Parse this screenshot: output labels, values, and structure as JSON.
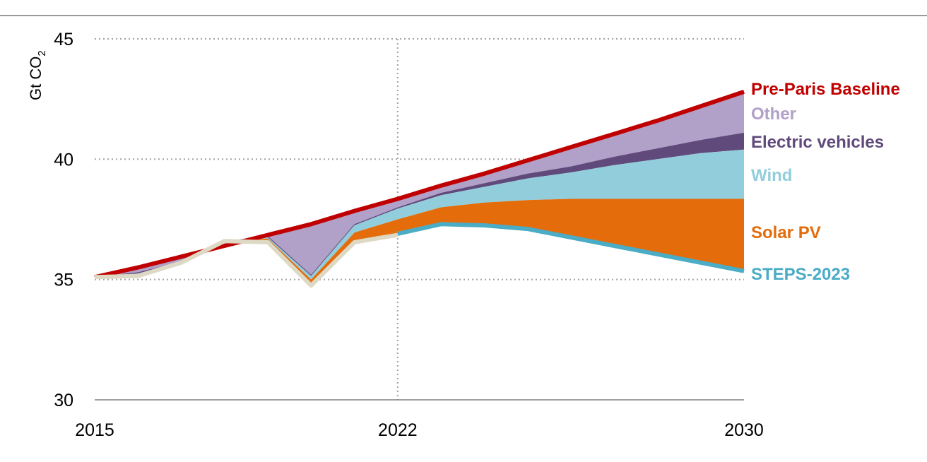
{
  "chart_data": {
    "type": "area",
    "title": "",
    "xlabel": "",
    "ylabel": "Gt CO",
    "ylabel_subscript": "2",
    "xlim": [
      2015,
      2030
    ],
    "ylim": [
      30,
      45
    ],
    "x_ticks": [
      "2015",
      "2022",
      "2030"
    ],
    "y_ticks": [
      "30",
      "35",
      "40",
      "45"
    ],
    "grid": "dotted horizontal at 35, 40, 45; dotted vertical at 2022",
    "vertical_marker": 2022,
    "x": [
      2015,
      2016,
      2017,
      2018,
      2019,
      2020,
      2021,
      2022,
      2023,
      2024,
      2025,
      2026,
      2027,
      2028,
      2029,
      2030
    ],
    "historical": {
      "x": [
        2015,
        2016,
        2017,
        2018,
        2019,
        2020,
        2021,
        2022
      ],
      "values": [
        35.1,
        35.15,
        35.7,
        36.6,
        36.55,
        34.75,
        36.55,
        36.85
      ]
    },
    "series": [
      {
        "name": "Pre-Paris Baseline",
        "color": "#c00000",
        "values": [
          35.1,
          35.5,
          35.95,
          36.4,
          36.85,
          37.3,
          37.85,
          38.35,
          38.9,
          39.4,
          39.95,
          40.5,
          41.05,
          41.6,
          42.2,
          42.8
        ]
      },
      {
        "name": "Other",
        "color": "#b1a0c7",
        "values": [
          35.1,
          35.3,
          35.75,
          36.6,
          36.8,
          35.2,
          37.3,
          38.0,
          38.6,
          39.0,
          39.4,
          39.7,
          40.1,
          40.45,
          40.8,
          41.1
        ]
      },
      {
        "name": "Electric vehicles",
        "color": "#604a7b",
        "values": [
          35.1,
          35.25,
          35.7,
          36.6,
          36.75,
          35.15,
          37.25,
          37.95,
          38.5,
          38.85,
          39.2,
          39.45,
          39.75,
          40.0,
          40.25,
          40.4
        ]
      },
      {
        "name": "Wind",
        "color": "#92cddc",
        "values": [
          35.1,
          35.2,
          35.7,
          36.6,
          36.7,
          35.0,
          36.95,
          37.5,
          38.0,
          38.2,
          38.3,
          38.35,
          38.35,
          38.35,
          38.35,
          38.35
        ]
      },
      {
        "name": "Solar PV",
        "color": "#e46c0a",
        "values": [
          35.1,
          35.15,
          35.7,
          36.6,
          36.6,
          34.9,
          36.6,
          37.0,
          37.3,
          37.25,
          37.1,
          36.75,
          36.4,
          36.05,
          35.7,
          35.35
        ]
      },
      {
        "name": "STEPS-2023",
        "color": "#4bacc6",
        "values": [
          35.1,
          35.15,
          35.7,
          36.6,
          36.55,
          34.8,
          36.55,
          36.9,
          37.3,
          37.25,
          37.1,
          36.75,
          36.4,
          36.05,
          35.7,
          35.35
        ]
      }
    ],
    "historical_color": "#ddd9c4"
  }
}
